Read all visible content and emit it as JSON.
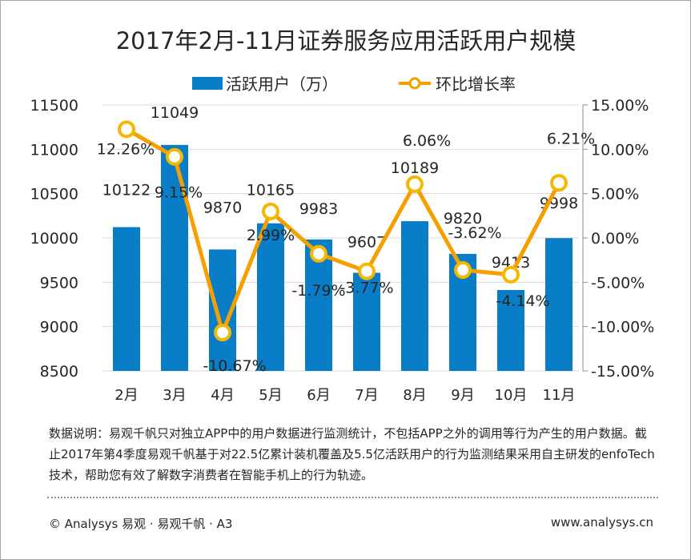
{
  "chart_data": {
    "type": "bar+line",
    "title": "2017年2月-11月证券服务应用活跃用户规模",
    "categories": [
      "2月",
      "3月",
      "4月",
      "5月",
      "6月",
      "7月",
      "8月",
      "9月",
      "10月",
      "11月"
    ],
    "series": [
      {
        "name": "活跃用户（万）",
        "type": "bar",
        "axis": "left",
        "color": "#0a7dc8",
        "values": [
          10122,
          11049,
          9870,
          10165,
          9983,
          9607,
          10189,
          9820,
          9413,
          9998
        ],
        "labels": [
          "10122",
          "11049",
          "9870",
          "10165",
          "9983",
          "9607",
          "10189",
          "9820",
          "9413",
          "9998"
        ]
      },
      {
        "name": "环比增长率",
        "type": "line",
        "axis": "right",
        "color": "#f5a000",
        "values": [
          12.26,
          9.15,
          -10.67,
          2.99,
          -1.79,
          -3.77,
          6.06,
          -3.62,
          -4.14,
          6.21
        ],
        "labels": [
          "12.26%",
          "9.15%",
          "-10.67%",
          "2.99%",
          "-1.79%",
          "-3.77%",
          "6.06%",
          "-3.62%",
          "-4.14%",
          "6.21%"
        ]
      }
    ],
    "y_left": {
      "range": [
        8500,
        11500
      ],
      "ticks": [
        "11500",
        "11000",
        "10500",
        "10000",
        "9500",
        "9000",
        "8500"
      ]
    },
    "y_right": {
      "range": [
        -15,
        15
      ],
      "ticks": [
        "15.00%",
        "10.00%",
        "5.00%",
        "0.00%",
        "-5.00%",
        "-10.00%",
        "-15.00%"
      ]
    },
    "grid": true,
    "legend": "top"
  },
  "note": "数据说明：易观千帆只对独立APP中的用户数据进行监测统计，不包括APP之外的调用等行为产生的用户数据。截止2017年第4季度易观千帆基于对22.5亿累计装机覆盖及5.5亿活跃用户的行为监测结果采用自主研发的enfoTech技术，帮助您有效了解数字消费者在智能手机上的行为轨迹。",
  "footer": {
    "left": "© Analysys 易观 · 易观千帆 · A3",
    "right": "www.analysys.cn"
  }
}
